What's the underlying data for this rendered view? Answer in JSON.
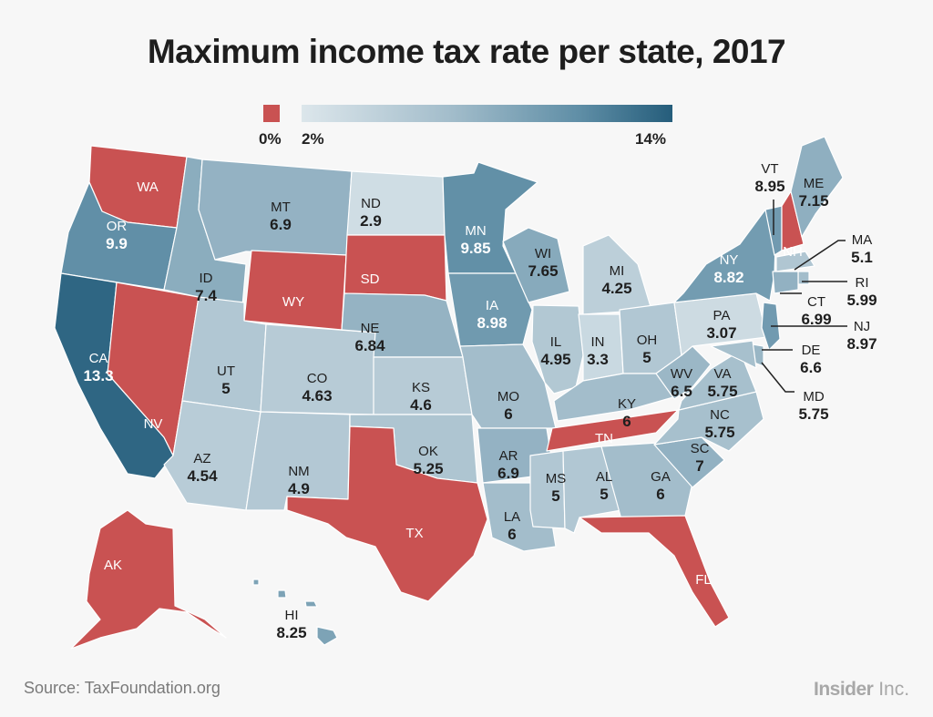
{
  "title": "Maximum income tax rate per state, 2017",
  "legend": {
    "zero_label": "0%",
    "min_label": "2%",
    "max_label": "14%",
    "zero_color": "#c95252",
    "min_color": "#dce6eb",
    "max_color": "#255d7b"
  },
  "source_label": "Source:",
  "source_value": "TaxFoundation.org",
  "brand": {
    "bold": "Insider",
    "light": "Inc."
  },
  "chart_data": {
    "type": "choropleth",
    "title": "Maximum income tax rate per state, 2017",
    "unit": "%",
    "scale": {
      "zero": 0,
      "min": 2,
      "max": 14
    },
    "states": [
      {
        "abbr": "WA",
        "value": 0
      },
      {
        "abbr": "OR",
        "value": 9.9
      },
      {
        "abbr": "CA",
        "value": 13.3
      },
      {
        "abbr": "NV",
        "value": 0
      },
      {
        "abbr": "ID",
        "value": 7.4
      },
      {
        "abbr": "MT",
        "value": 6.9
      },
      {
        "abbr": "WY",
        "value": 0
      },
      {
        "abbr": "UT",
        "value": 5
      },
      {
        "abbr": "CO",
        "value": 4.63
      },
      {
        "abbr": "AZ",
        "value": 4.54
      },
      {
        "abbr": "NM",
        "value": 4.9
      },
      {
        "abbr": "ND",
        "value": 2.9
      },
      {
        "abbr": "SD",
        "value": 0
      },
      {
        "abbr": "NE",
        "value": 6.84
      },
      {
        "abbr": "KS",
        "value": 4.6
      },
      {
        "abbr": "OK",
        "value": 5.25
      },
      {
        "abbr": "TX",
        "value": 0
      },
      {
        "abbr": "MN",
        "value": 9.85
      },
      {
        "abbr": "IA",
        "value": 8.98
      },
      {
        "abbr": "MO",
        "value": 6
      },
      {
        "abbr": "AR",
        "value": 6.9
      },
      {
        "abbr": "LA",
        "value": 6
      },
      {
        "abbr": "WI",
        "value": 7.65
      },
      {
        "abbr": "IL",
        "value": 4.95
      },
      {
        "abbr": "MI",
        "value": 4.25
      },
      {
        "abbr": "IN",
        "value": 3.3
      },
      {
        "abbr": "OH",
        "value": 5
      },
      {
        "abbr": "KY",
        "value": 6
      },
      {
        "abbr": "TN",
        "value": 0
      },
      {
        "abbr": "MS",
        "value": 5
      },
      {
        "abbr": "AL",
        "value": 5
      },
      {
        "abbr": "GA",
        "value": 6
      },
      {
        "abbr": "FL",
        "value": 0
      },
      {
        "abbr": "SC",
        "value": 7
      },
      {
        "abbr": "NC",
        "value": 5.75
      },
      {
        "abbr": "VA",
        "value": 5.75
      },
      {
        "abbr": "WV",
        "value": 6.5
      },
      {
        "abbr": "PA",
        "value": 3.07
      },
      {
        "abbr": "NY",
        "value": 8.82
      },
      {
        "abbr": "VT",
        "value": 8.95
      },
      {
        "abbr": "NH",
        "value": 0
      },
      {
        "abbr": "ME",
        "value": 7.15
      },
      {
        "abbr": "MA",
        "value": 5.1
      },
      {
        "abbr": "RI",
        "value": 5.99
      },
      {
        "abbr": "CT",
        "value": 6.99
      },
      {
        "abbr": "NJ",
        "value": 8.97
      },
      {
        "abbr": "DE",
        "value": 6.6
      },
      {
        "abbr": "MD",
        "value": 5.75
      },
      {
        "abbr": "AK",
        "value": 0
      },
      {
        "abbr": "HI",
        "value": 8.25
      }
    ]
  }
}
